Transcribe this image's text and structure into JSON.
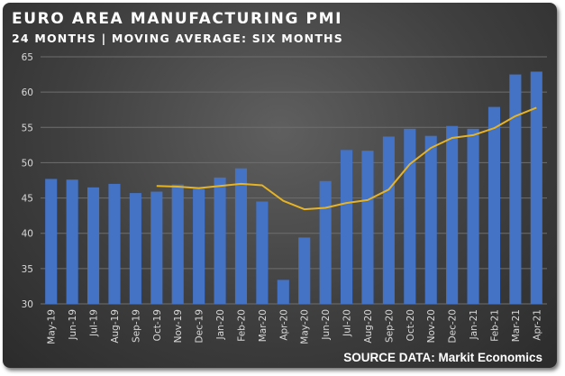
{
  "title": "EURO AREA MANUFACTURING PMI",
  "subtitle": "24 MONTHS | MOVING AVERAGE: SIX MONTHS",
  "source": "SOURCE DATA: Markit Economics",
  "colors": {
    "bar": "#4472c4",
    "moving_average": "#e6b324",
    "gridline": "#6e6e6e",
    "background": "#4a4a4a"
  },
  "chart_data": {
    "type": "bar",
    "title": "EURO AREA MANUFACTURING PMI",
    "subtitle": "24 MONTHS | MOVING AVERAGE: SIX MONTHS",
    "xlabel": "",
    "ylabel": "",
    "ylim": [
      30,
      65
    ],
    "yticks": [
      30,
      35,
      40,
      45,
      50,
      55,
      60,
      65
    ],
    "grid": true,
    "legend": "none",
    "categories": [
      "May-19",
      "Jun-19",
      "Jul-19",
      "Aug-19",
      "Sep-19",
      "Oct-19",
      "Nov-19",
      "Dec-19",
      "Jan-20",
      "Feb-20",
      "Mar-20",
      "Apr-20",
      "May-20",
      "Jun-20",
      "Jul-20",
      "Aug-20",
      "Sep-20",
      "Oct-20",
      "Nov-20",
      "Dec-20",
      "Jan-21",
      "Feb-21",
      "Mar-21",
      "Apr-21"
    ],
    "series": [
      {
        "type": "bar",
        "values": [
          47.7,
          47.6,
          46.5,
          47.0,
          45.7,
          45.9,
          46.9,
          46.3,
          47.9,
          49.2,
          44.5,
          33.4,
          39.4,
          47.4,
          51.8,
          51.7,
          53.7,
          54.8,
          53.8,
          55.2,
          54.8,
          57.9,
          62.5,
          62.9
        ]
      },
      {
        "type": "line",
        "values": [
          null,
          null,
          null,
          null,
          null,
          46.7,
          46.6,
          46.4,
          46.7,
          47.0,
          46.8,
          44.6,
          43.4,
          43.6,
          44.3,
          44.7,
          46.2,
          49.8,
          52.1,
          53.5,
          53.9,
          54.9,
          56.6,
          57.8
        ]
      }
    ]
  }
}
